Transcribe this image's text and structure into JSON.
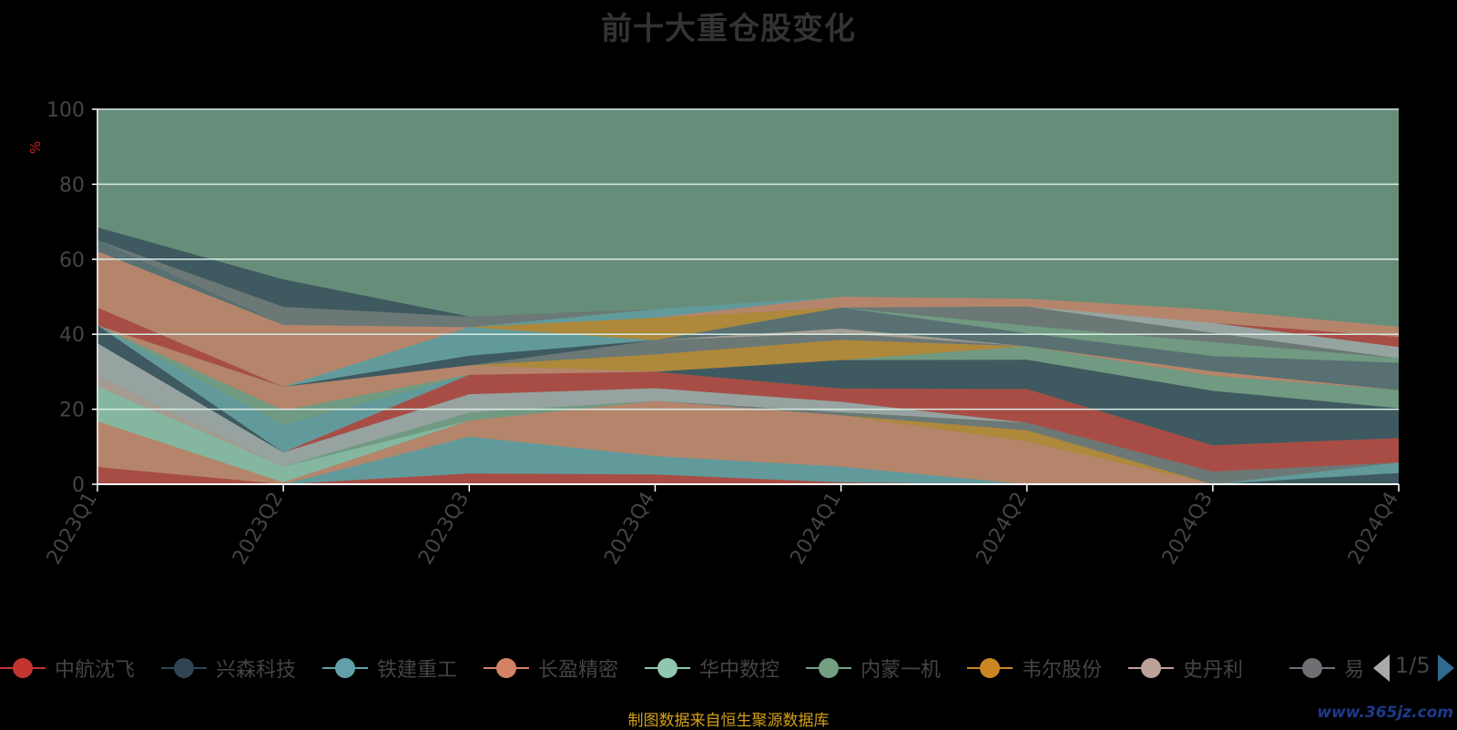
{
  "page": {
    "title": "前十大重仓股变化",
    "footer": "制图数据来自恒生聚源数据库",
    "watermark": "www.365jz.com"
  },
  "legend": {
    "page_indicator": "1/5"
  },
  "colors": {
    "background": "#000000",
    "remainder": "#668d7a"
  },
  "chart_data": {
    "type": "area",
    "stacked": true,
    "title": "前十大重仓股变化",
    "ylabel": "%",
    "ylim": [
      0,
      100
    ],
    "yticks": [
      0,
      20,
      40,
      60,
      80,
      100
    ],
    "grid": true,
    "legend_position": "bottom",
    "categories": [
      "2023Q1",
      "2023Q2",
      "2023Q3",
      "2023Q4",
      "2024Q1",
      "2024Q2",
      "2024Q3",
      "2024Q4"
    ],
    "series": [
      {
        "name": "中航沈飞",
        "color": "#c23531",
        "values": [
          4.6,
          0,
          2.9,
          2.6,
          0.5,
          0,
          0,
          0
        ],
        "legend": true
      },
      {
        "name": "兴森科技",
        "color": "#2f4554",
        "values": [
          0,
          0,
          0,
          0,
          0,
          0,
          0,
          3
        ],
        "legend": true
      },
      {
        "name": "铁建重工",
        "color": "#61a0a8",
        "values": [
          0,
          0,
          9.8,
          4.9,
          4.2,
          0,
          0,
          2.8
        ],
        "legend": true
      },
      {
        "name": "长盈精密",
        "color": "#d48265",
        "values": [
          12.2,
          0.5,
          4.3,
          14.7,
          13.7,
          11.4,
          0,
          0
        ],
        "legend": true
      },
      {
        "name": "华中数控",
        "color": "#91c7ae",
        "values": [
          9.3,
          4.2,
          0,
          0,
          0,
          0,
          0,
          0
        ],
        "legend": true
      },
      {
        "name": "内蒙一机",
        "color": "#749f83",
        "values": [
          0,
          0,
          2.1,
          0,
          0,
          0,
          0,
          0
        ],
        "legend": true
      },
      {
        "name": "韦尔股份",
        "color": "#ca8622",
        "values": [
          0,
          0,
          0,
          0,
          0,
          3,
          0,
          0
        ],
        "legend": true
      },
      {
        "name": "史丹利",
        "color": "#bda29a",
        "values": [
          2.9,
          0,
          0,
          0,
          0,
          0,
          0,
          0
        ],
        "legend": true
      },
      {
        "name": "易",
        "color": "#6e7074",
        "values": [
          0,
          0,
          0,
          0,
          0.8,
          2,
          3.4,
          0
        ],
        "legend": true
      },
      {
        "name": "",
        "color": "#a9acb0",
        "values": [
          8.6,
          3.8,
          4.9,
          3.4,
          2.8,
          0,
          0,
          0
        ],
        "legend": false
      },
      {
        "name": "",
        "color": "#c23531",
        "values": [
          0,
          0,
          5.2,
          4.4,
          3.5,
          9,
          7,
          6.5
        ],
        "legend": false
      },
      {
        "name": "",
        "color": "#2f4554",
        "values": [
          4.8,
          0,
          0,
          0,
          7.6,
          7.8,
          14.5,
          8
        ],
        "legend": false
      },
      {
        "name": "",
        "color": "#61a0a8",
        "values": [
          0,
          7.4,
          0,
          0,
          0,
          0,
          0,
          0
        ],
        "legend": false
      },
      {
        "name": "",
        "color": "#749f83",
        "values": [
          0,
          3.8,
          0,
          0,
          0,
          3.6,
          4,
          4.8
        ],
        "legend": false
      },
      {
        "name": "",
        "color": "#d48265",
        "values": [
          0,
          6.3,
          2.5,
          0,
          0,
          0,
          1.2,
          0
        ],
        "legend": false
      },
      {
        "name": "",
        "color": "#ca8622",
        "values": [
          0,
          0,
          0,
          4.6,
          5.4,
          0,
          0,
          0
        ],
        "legend": false
      },
      {
        "name": "",
        "color": "#6e7074",
        "values": [
          0,
          0,
          0,
          3.8,
          1.8,
          0,
          0,
          0
        ],
        "legend": false
      },
      {
        "name": "",
        "color": "#bda29a",
        "values": [
          0,
          0,
          0,
          0,
          1.2,
          0,
          0,
          0
        ],
        "legend": false
      },
      {
        "name": "",
        "color": "#546570",
        "values": [
          0,
          0,
          0,
          0,
          5.6,
          3.5,
          4.1,
          7.3
        ],
        "legend": false
      },
      {
        "name": "",
        "color": "#c23531",
        "values": [
          4.7,
          0,
          0,
          0,
          0,
          0,
          0,
          0
        ],
        "legend": false
      },
      {
        "name": "",
        "color": "#2f4554",
        "values": [
          0,
          0,
          2.6,
          0,
          0,
          0,
          0,
          0
        ],
        "legend": false
      },
      {
        "name": "",
        "color": "#61a0a8",
        "values": [
          0,
          0,
          7.6,
          0,
          0,
          0,
          0,
          0
        ],
        "legend": false
      },
      {
        "name": "",
        "color": "#ca8622",
        "values": [
          0,
          0,
          0,
          6,
          0,
          0,
          0,
          0
        ],
        "legend": false
      },
      {
        "name": "",
        "color": "#749f83",
        "values": [
          0,
          0,
          0,
          0,
          0,
          2,
          3.7,
          1.2
        ],
        "legend": false
      },
      {
        "name": "",
        "color": "#6e7074",
        "values": [
          0,
          0,
          0,
          0,
          0,
          5.1,
          2.5,
          0
        ],
        "legend": false
      },
      {
        "name": "",
        "color": "#a9acb0",
        "values": [
          0,
          0,
          0,
          0,
          0,
          0,
          2.6,
          3
        ],
        "legend": false
      },
      {
        "name": "",
        "color": "#c23531",
        "values": [
          0,
          0,
          0,
          0,
          0,
          0,
          0,
          2.7
        ],
        "legend": false
      },
      {
        "name": "",
        "color": "#d48265",
        "values": [
          15,
          16.5,
          0,
          0,
          2.9,
          2.1,
          3.5,
          2.7
        ],
        "legend": false
      },
      {
        "name": "",
        "color": "#546570",
        "values": [
          3,
          0,
          0,
          0,
          0,
          0,
          0,
          0
        ],
        "legend": false
      },
      {
        "name": "",
        "color": "#61a0a8",
        "values": [
          0,
          0,
          0,
          2.3,
          0,
          0,
          0,
          0
        ],
        "legend": false
      },
      {
        "name": "",
        "color": "#6e7074",
        "values": [
          0,
          4.8,
          2.8,
          0,
          0,
          0,
          0,
          0
        ],
        "legend": false
      },
      {
        "name": "",
        "color": "#2f4554",
        "values": [
          3.4,
          7.3,
          0,
          0,
          0,
          0,
          0,
          0
        ],
        "legend": false
      }
    ]
  }
}
